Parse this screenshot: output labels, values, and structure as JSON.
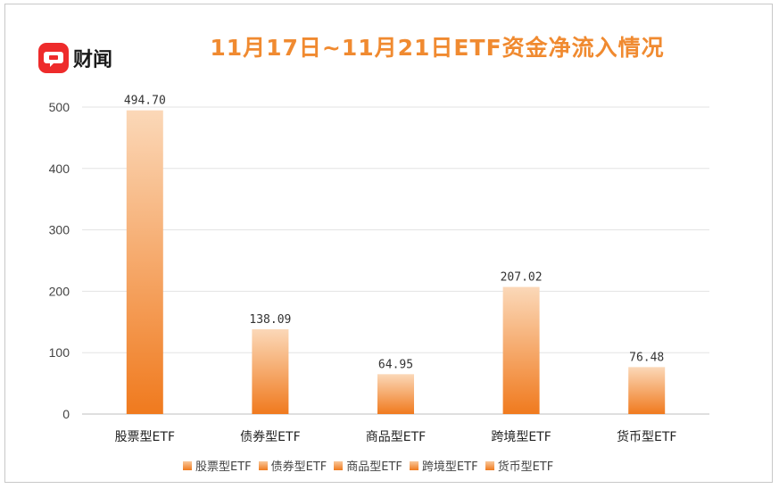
{
  "brand": {
    "name": "财闻",
    "accent": "#ee2b2b"
  },
  "chart_data": {
    "type": "bar",
    "title": "11月17日~11月21日ETF资金净流入情况",
    "categories": [
      "股票型ETF",
      "债券型ETF",
      "商品型ETF",
      "跨境型ETF",
      "货币型ETF"
    ],
    "series": [
      {
        "values": [
          494.7,
          138.09,
          64.95,
          207.02,
          76.48
        ]
      }
    ],
    "value_labels": [
      "494.70",
      "138.09",
      "64.95",
      "207.02",
      "76.48"
    ],
    "y_ticks": [
      "0",
      "100",
      "200",
      "300",
      "400",
      "500"
    ],
    "ylim": [
      0,
      500
    ],
    "grid": true,
    "legend": {
      "placement": "bottom",
      "entries": [
        "股票型ETF",
        "债券型ETF",
        "商品型ETF",
        "跨境型ETF",
        "货币型ETF"
      ]
    },
    "colors": {
      "bar_top": "#fbd8b8",
      "bar_bottom": "#f07a1e",
      "title": "#f08a30"
    }
  }
}
